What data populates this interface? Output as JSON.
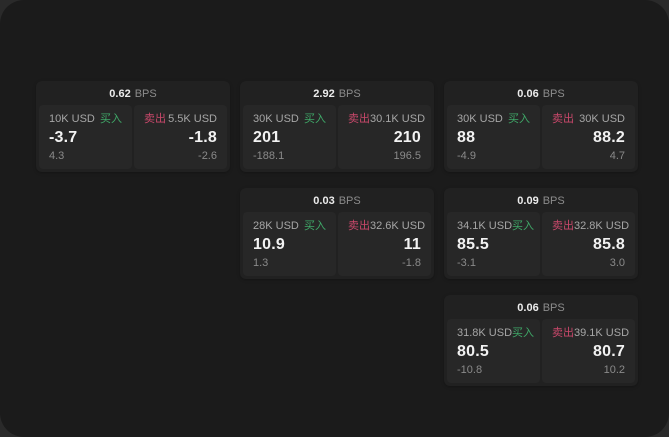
{
  "labels": {
    "bps": "BPS",
    "buy": "买入",
    "sell": "卖出"
  },
  "colors": {
    "buy": "#3fa868",
    "sell": "#c9486b",
    "panel_bg": "#1b1b1b",
    "card_bg": "#212121",
    "tile_bg": "#272727",
    "main_text": "#f2f2f2",
    "muted_text": "#8a8a8a"
  },
  "cards": [
    {
      "bps": "0.62",
      "row": 1,
      "col": 1,
      "buy": {
        "amount": "10K USD",
        "main": "-3.7",
        "sub": "4.3"
      },
      "sell": {
        "amount": "5.5K USD",
        "main": "-1.8",
        "sub": "-2.6"
      }
    },
    {
      "bps": "2.92",
      "row": 1,
      "col": 2,
      "buy": {
        "amount": "30K USD",
        "main": "201",
        "sub": "-188.1"
      },
      "sell": {
        "amount": "30.1K USD",
        "main": "210",
        "sub": "196.5"
      }
    },
    {
      "bps": "0.06",
      "row": 1,
      "col": 3,
      "buy": {
        "amount": "30K USD",
        "main": "88",
        "sub": "-4.9"
      },
      "sell": {
        "amount": "30K USD",
        "main": "88.2",
        "sub": "4.7"
      }
    },
    {
      "bps": "0.03",
      "row": 2,
      "col": 2,
      "buy": {
        "amount": "28K USD",
        "main": "10.9",
        "sub": "1.3"
      },
      "sell": {
        "amount": "32.6K USD",
        "main": "11",
        "sub": "-1.8"
      }
    },
    {
      "bps": "0.09",
      "row": 2,
      "col": 3,
      "buy": {
        "amount": "34.1K USD",
        "main": "85.5",
        "sub": "-3.1"
      },
      "sell": {
        "amount": "32.8K USD",
        "main": "85.8",
        "sub": "3.0"
      }
    },
    {
      "bps": "0.06",
      "row": 3,
      "col": 3,
      "buy": {
        "amount": "31.8K USD",
        "main": "80.5",
        "sub": "-10.8"
      },
      "sell": {
        "amount": "39.1K USD",
        "main": "80.7",
        "sub": "10.2"
      }
    }
  ]
}
